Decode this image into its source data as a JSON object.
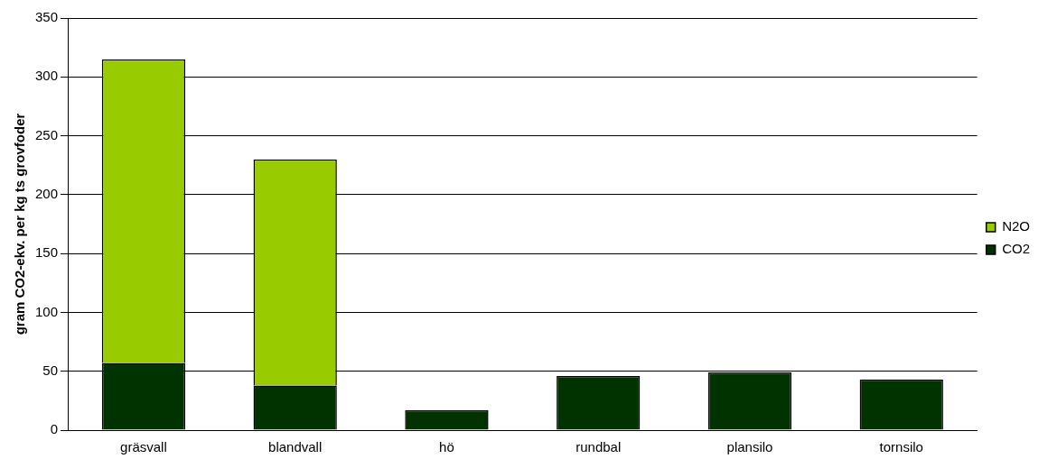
{
  "chart_data": {
    "type": "bar",
    "stacked": true,
    "ylabel": "gram CO2-ekv. per kg ts grovfoder",
    "categories": [
      "gräsvall",
      "blandvall",
      "hö",
      "rundbal",
      "plansilo",
      "tornsilo"
    ],
    "series": [
      {
        "name": "CO2",
        "color": "#003300",
        "values": [
          57,
          38,
          17,
          46,
          49,
          43
        ]
      },
      {
        "name": "N2O",
        "color": "#99cc00",
        "values": [
          258,
          192,
          null,
          null,
          null,
          null
        ]
      }
    ],
    "ylim": [
      0,
      350
    ],
    "yticks": [
      0,
      50,
      100,
      150,
      200,
      250,
      300,
      350
    ],
    "grid": "y",
    "legend": "right"
  }
}
